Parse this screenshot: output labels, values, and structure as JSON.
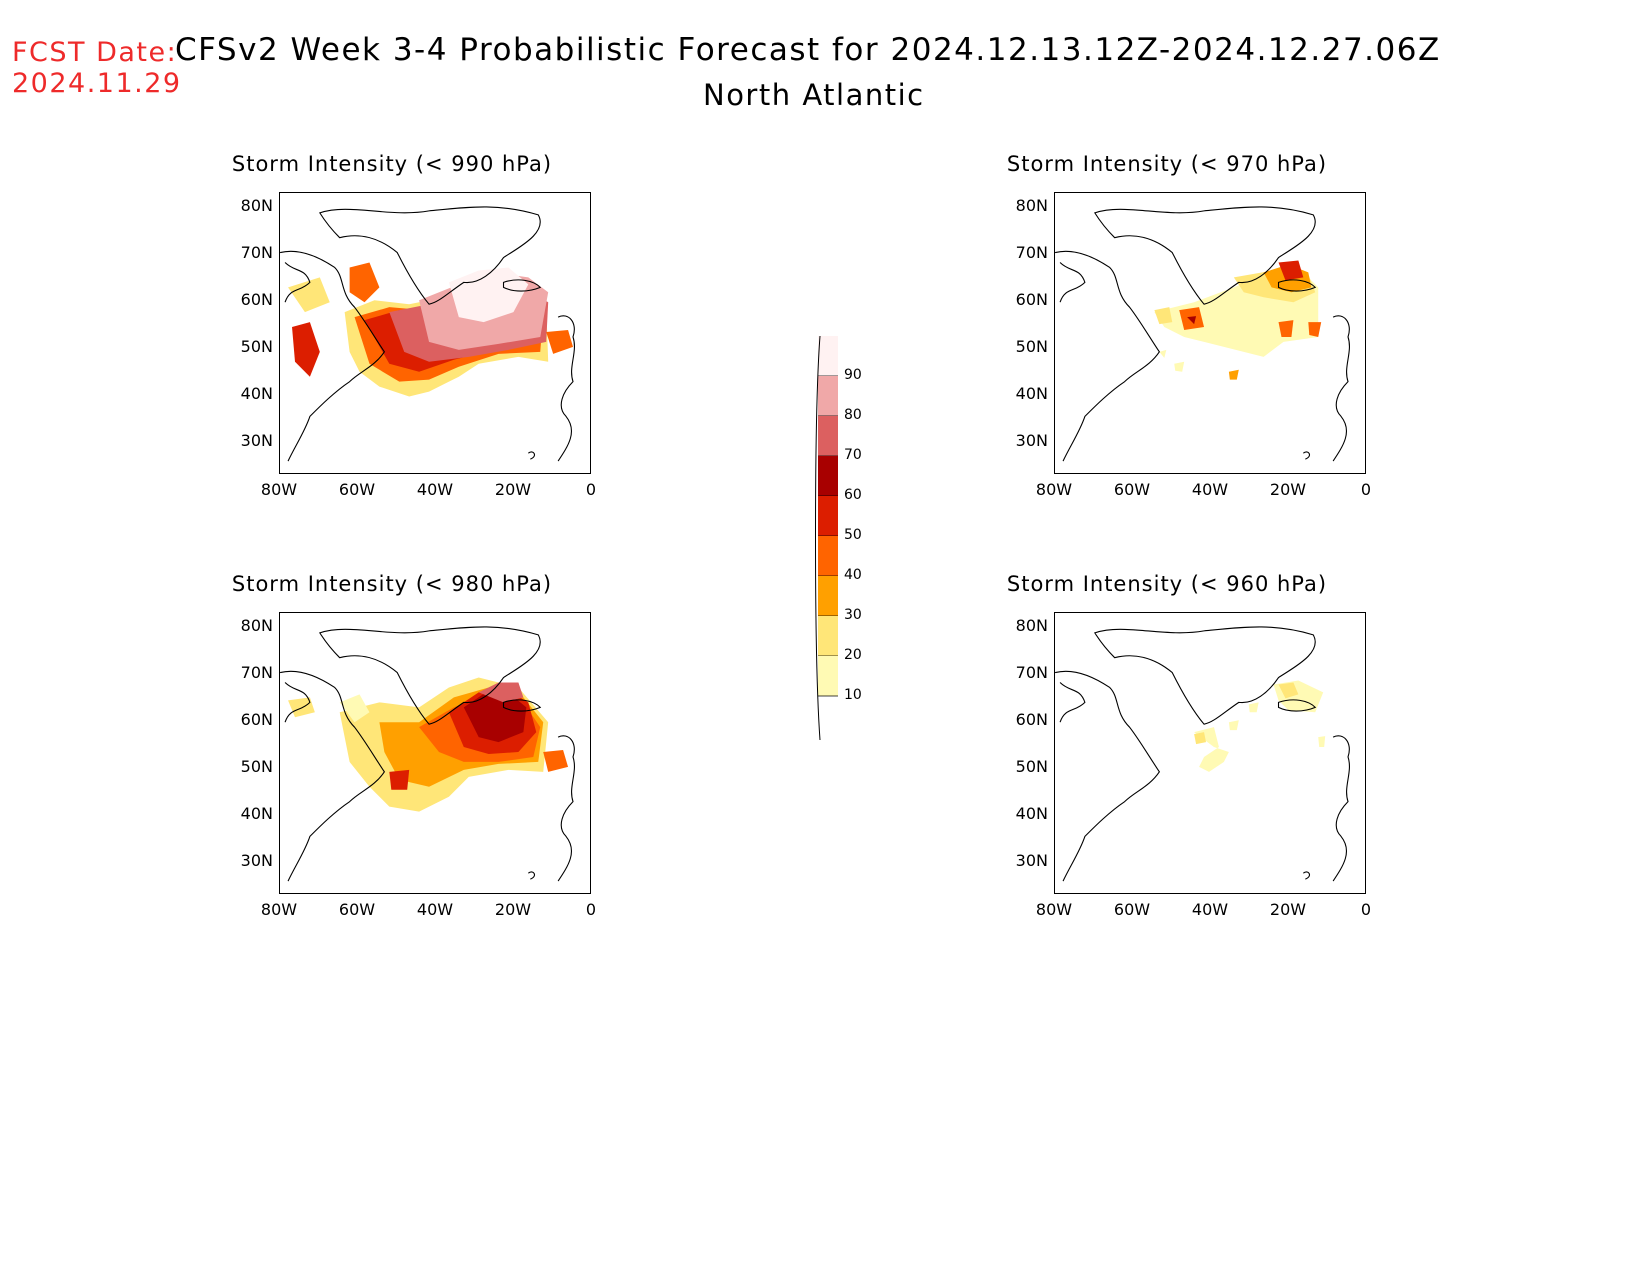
{
  "header": {
    "fcst_label": "FCST Date:",
    "fcst_date": "2024.11.29",
    "title": "CFSv2 Week 3-4 Probabilistic Forecast for 2024.12.13.12Z-2024.12.27.06Z",
    "region": "North Atlantic"
  },
  "panels": [
    {
      "title": "Storm Intensity (< 990 hPa)"
    },
    {
      "title": "Storm Intensity (< 970 hPa)"
    },
    {
      "title": "Storm Intensity (< 980 hPa)"
    },
    {
      "title": "Storm Intensity (< 960 hPa)"
    }
  ],
  "axes": {
    "y_labels": [
      "80N",
      "70N",
      "60N",
      "50N",
      "40N",
      "30N"
    ],
    "x_labels": [
      "80W",
      "60W",
      "40W",
      "20W",
      "0"
    ]
  },
  "colorbar": {
    "labels": [
      "90",
      "80",
      "70",
      "60",
      "50",
      "40",
      "30",
      "20",
      "10"
    ],
    "colors": [
      "#fff2f2",
      "#f0a8a8",
      "#dc6060",
      "#a80000",
      "#dc1e00",
      "#ff6400",
      "#ffa000",
      "#ffe678",
      "#fffab4"
    ]
  }
}
